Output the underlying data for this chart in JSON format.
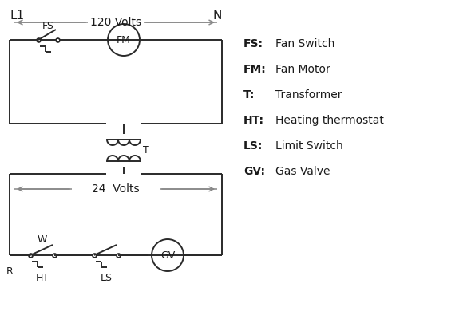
{
  "bg_color": "#ffffff",
  "line_color": "#2a2a2a",
  "gray_arrow_color": "#888888",
  "text_color": "#1a1a1a",
  "L1_label": "L1",
  "N_label": "N",
  "v120_label": "120 Volts",
  "v24_label": "24  Volts",
  "T_label": "T",
  "FS_label": "FS",
  "FM_label": "FM",
  "R_label": "R",
  "W_label": "W",
  "HT_label": "HT",
  "LS_label": "LS",
  "GV_label": "GV",
  "legend_lines": [
    [
      "FS:",
      "Fan Switch"
    ],
    [
      "FM:",
      "Fan Motor"
    ],
    [
      "T:",
      "Transformer"
    ],
    [
      "HT:",
      "Heating thermostat"
    ],
    [
      "LS:",
      "Limit Switch"
    ],
    [
      "GV:",
      "Gas Valve"
    ]
  ],
  "font_size": 10,
  "font_family": "DejaVu Sans"
}
